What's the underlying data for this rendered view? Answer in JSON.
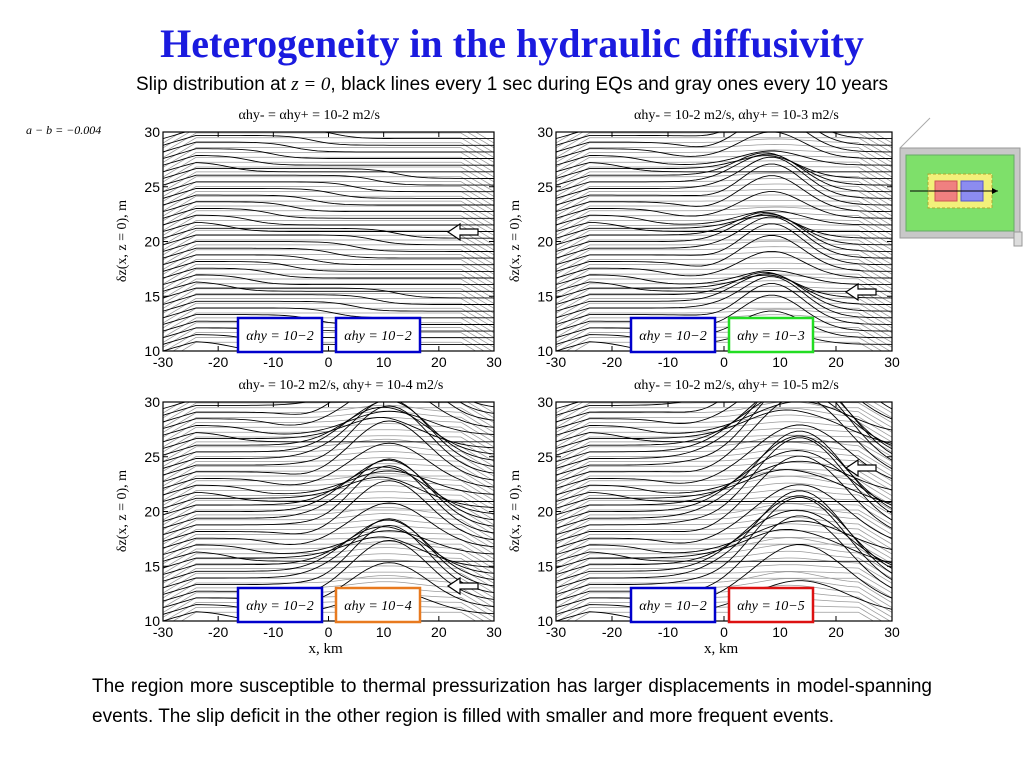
{
  "title": "Heterogeneity in the hydraulic diffusivity",
  "subtitle": {
    "before": "Slip distribution at ",
    "var": "z = 0",
    "after": ", black lines every 1 sec during EQs and gray ones every 10 years"
  },
  "ab_label": "a − b = −0.004",
  "body_text": "The region more susceptible to thermal pressurization has larger displacements in model-spanning events. The slip deficit in the other region is filled with smaller and more frequent events.",
  "colors": {
    "title": "#1a1adf",
    "box_blue": "#0000cc",
    "box_green": "#22dd22",
    "box_orange": "#e87a1f",
    "box_red": "#dd1111",
    "inset_gray": "#c8c8c8",
    "inset_green": "#7ee06a",
    "inset_yellow": "#f2f07a",
    "inset_red": "#f08080",
    "inset_blue": "#8c8cf0"
  },
  "chart_data": [
    {
      "type": "line",
      "title": "αhy- = αhy+ = 10-2 m2/s",
      "xlabel": "",
      "ylabel": "δz(x, z = 0), m",
      "xlim": [
        -30,
        30
      ],
      "ylim": [
        10,
        30
      ],
      "xticks": [
        "-30",
        "-20",
        "-10",
        "0",
        "10",
        "20",
        "30"
      ],
      "yticks": [
        "10",
        "15",
        "20",
        "25",
        "30"
      ],
      "legend": [
        {
          "label": "αhy = 10−2",
          "color": "box_blue"
        },
        {
          "label": "αhy = 10−2",
          "color": "box_blue"
        }
      ],
      "alpha_left": 0.01,
      "alpha_right": 0.01
    },
    {
      "type": "line",
      "title": "αhy- = 10-2 m2/s, αhy+ = 10-3 m2/s",
      "xlabel": "",
      "ylabel": "δz(x, z = 0), m",
      "xlim": [
        -30,
        30
      ],
      "ylim": [
        10,
        30
      ],
      "xticks": [
        "-30",
        "-20",
        "-10",
        "0",
        "10",
        "20",
        "30"
      ],
      "yticks": [
        "10",
        "15",
        "20",
        "25",
        "30"
      ],
      "legend": [
        {
          "label": "αhy = 10−2",
          "color": "box_blue"
        },
        {
          "label": "αhy = 10−3",
          "color": "box_green"
        }
      ],
      "alpha_left": 0.01,
      "alpha_right": 0.001
    },
    {
      "type": "line",
      "title": "αhy- = 10-2 m2/s, αhy+ = 10-4 m2/s",
      "xlabel": "x, km",
      "ylabel": "δz(x, z = 0), m",
      "xlim": [
        -30,
        30
      ],
      "ylim": [
        10,
        30
      ],
      "xticks": [
        "-30",
        "-20",
        "-10",
        "0",
        "10",
        "20",
        "30"
      ],
      "yticks": [
        "10",
        "15",
        "20",
        "25",
        "30"
      ],
      "legend": [
        {
          "label": "αhy = 10−2",
          "color": "box_blue"
        },
        {
          "label": "αhy = 10−4",
          "color": "box_orange"
        }
      ],
      "alpha_left": 0.01,
      "alpha_right": 0.0001
    },
    {
      "type": "line",
      "title": "αhy- = 10-2 m2/s, αhy+ = 10-5 m2/s",
      "xlabel": "x, km",
      "ylabel": "δz(x, z = 0), m",
      "xlim": [
        -30,
        30
      ],
      "ylim": [
        10,
        30
      ],
      "xticks": [
        "-30",
        "-20",
        "-10",
        "0",
        "10",
        "20",
        "30"
      ],
      "yticks": [
        "10",
        "15",
        "20",
        "25",
        "30"
      ],
      "legend": [
        {
          "label": "αhy = 10−2",
          "color": "box_blue"
        },
        {
          "label": "αhy = 10−5",
          "color": "box_red"
        }
      ],
      "alpha_left": 0.01,
      "alpha_right": 1e-05
    }
  ]
}
